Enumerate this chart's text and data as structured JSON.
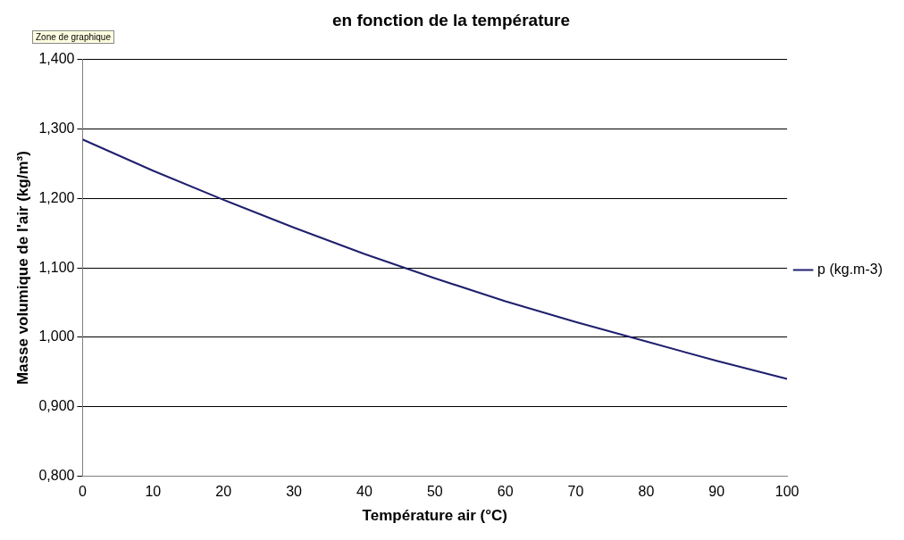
{
  "chart_data": {
    "type": "line",
    "title": "en fonction de la température",
    "xlabel": "Température air (°C)",
    "ylabel": "Masse volumique de l'air (kg/m³)",
    "annotations": [
      "Zone de graphique"
    ],
    "x": [
      0,
      10,
      20,
      30,
      40,
      50,
      60,
      70,
      80,
      90,
      100
    ],
    "series": [
      {
        "name": "p (kg.m-3)",
        "color": "#1f1f6e",
        "values": [
          1.285,
          1.24,
          1.198,
          1.158,
          1.12,
          1.085,
          1.052,
          1.022,
          0.994,
          0.966,
          0.94
        ]
      }
    ],
    "xlim": [
      0,
      100
    ],
    "xticks": [
      0,
      10,
      20,
      30,
      40,
      50,
      60,
      70,
      80,
      90,
      100
    ],
    "ylim": [
      0.8,
      1.4
    ],
    "yticks": [
      {
        "value": 0.8,
        "label": "0,800"
      },
      {
        "value": 0.9,
        "label": "0,900"
      },
      {
        "value": 1.0,
        "label": "1,000"
      },
      {
        "value": 1.1,
        "label": "1,100"
      },
      {
        "value": 1.2,
        "label": "1,200"
      },
      {
        "value": 1.3,
        "label": "1,300"
      },
      {
        "value": 1.4,
        "label": "1,400"
      }
    ],
    "grid": "y",
    "legend": "right",
    "marker": "none",
    "line_style": "solid"
  }
}
